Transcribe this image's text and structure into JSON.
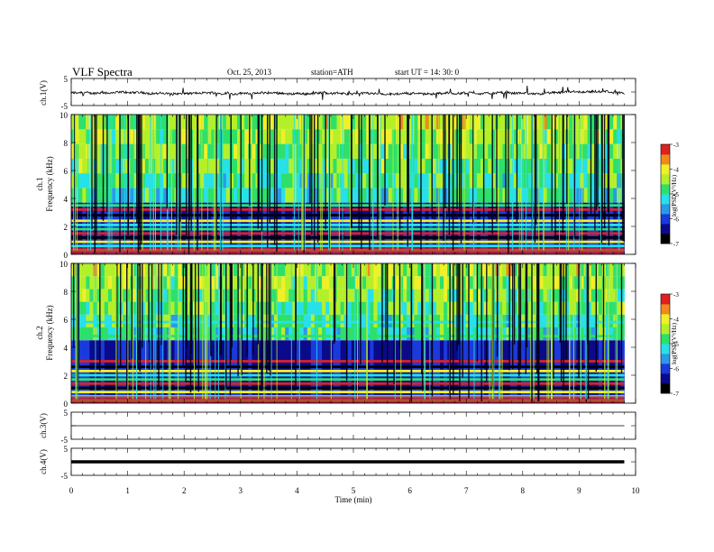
{
  "header": {
    "title": "VLF  Spectra",
    "date": "Oct. 25, 2013",
    "station": "station=ATH",
    "start": "start  UT  =   14: 30: 0"
  },
  "panels": {
    "ch1_wave": {
      "ylabel": "ch.1(V)"
    },
    "ch1_spec": {
      "ylabel_top": "ch.1",
      "ylabel_bottom": "Frequency  (kHz)"
    },
    "ch2_spec": {
      "ylabel_top": "ch.2",
      "ylabel_bottom": "Frequency  (kHz)"
    },
    "ch3_wave": {
      "ylabel": "ch.3(V)"
    },
    "ch4_wave": {
      "ylabel": "ch.4(V)"
    }
  },
  "colorbar": {
    "label": "log(PSD(V²/Hz)",
    "ticks": [
      "-3",
      "-4",
      "-5",
      "-6",
      "-7"
    ]
  },
  "colors": {
    "colormap": [
      "#000000",
      "#0a0a8a",
      "#1a3adc",
      "#2a9ae6",
      "#28e0e8",
      "#2ee06a",
      "#b4f02a",
      "#f0f028",
      "#f08a1c",
      "#e02020",
      "#ffffff"
    ]
  },
  "chart_data": [
    {
      "type": "line",
      "name": "ch.1(V)",
      "xlim": [
        0,
        10
      ],
      "ylim": [
        -5,
        5
      ],
      "x_range_data": [
        0,
        9.8
      ],
      "baseline": -0.5,
      "yticks": [
        "5",
        "-5"
      ],
      "description": "noisy waveform near zero with sparse spikes"
    },
    {
      "type": "heatmap",
      "name": "ch.1",
      "xlim": [
        0,
        10
      ],
      "ylim": [
        0,
        10
      ],
      "x_range_data": [
        0,
        9.8
      ],
      "ylabel": "Frequency  (kHz)",
      "yticks": [
        "0",
        "2",
        "4",
        "6",
        "8",
        "10"
      ],
      "color_range": [
        -7,
        -3
      ],
      "bands_khz": [
        0.3,
        0.6,
        0.9,
        1.2,
        1.5,
        1.8,
        2.1,
        2.4,
        2.8,
        3.2,
        3.5
      ],
      "noise_floor_top_khz": 3.7
    },
    {
      "type": "heatmap",
      "name": "ch.2",
      "xlim": [
        0,
        10
      ],
      "ylim": [
        0,
        10
      ],
      "x_range_data": [
        0,
        9.8
      ],
      "ylabel": "Frequency  (kHz)",
      "yticks": [
        "0",
        "2",
        "4",
        "6",
        "8",
        "10"
      ],
      "color_range": [
        -7,
        -3
      ],
      "bands_khz": [
        0.2,
        0.5,
        0.8,
        1.1,
        1.4,
        1.7,
        2.0,
        2.3,
        2.6,
        3.0,
        4.8,
        5.8
      ],
      "noise_floor_top_khz": 4.5
    },
    {
      "type": "line",
      "name": "ch.3(V)",
      "xlim": [
        0,
        10
      ],
      "ylim": [
        -5,
        5
      ],
      "x_range_data": [
        0,
        9.8
      ],
      "baseline": 0,
      "yticks": [
        "5",
        "-5"
      ]
    },
    {
      "type": "line",
      "name": "ch.4(V)",
      "xlim": [
        0,
        10
      ],
      "ylim": [
        -5,
        5
      ],
      "x_range_data": [
        0,
        9.8
      ],
      "baseline": 0,
      "yticks": [
        "5",
        "-5"
      ]
    }
  ],
  "xaxis": {
    "label": "Time  (min)",
    "ticks": [
      "0",
      "1",
      "2",
      "3",
      "4",
      "5",
      "6",
      "7",
      "8",
      "9",
      "10"
    ]
  }
}
